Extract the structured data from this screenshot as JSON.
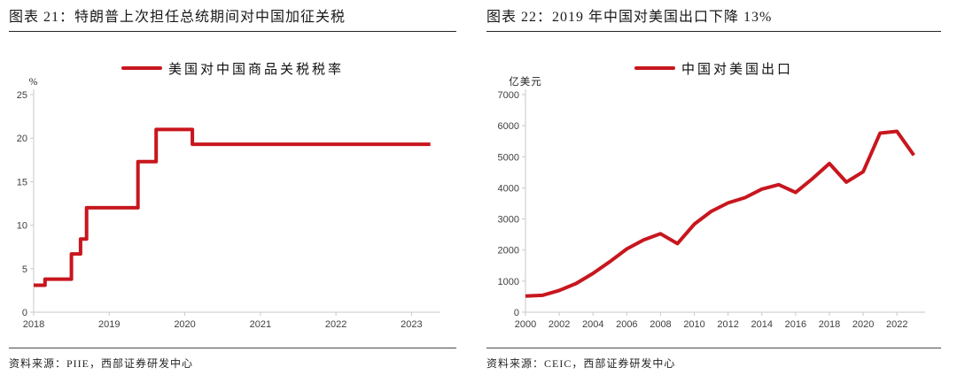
{
  "accent_red": "#C8161E",
  "axis_color": "#C9C9C9",
  "chart_data": [
    {
      "id": "figure-21",
      "type": "step-line",
      "title": "图表 21：特朗普上次担任总统期间对中国加征关税",
      "legend": "美国对中国商品关税税率",
      "source": "资料来源：PIIE，西部证券研发中心",
      "unit": "%",
      "x_range": [
        2018,
        2023.3
      ],
      "y_range": [
        0,
        25
      ],
      "y_ticks": [
        0,
        5,
        10,
        15,
        20,
        25
      ],
      "x_ticks": [
        2018,
        2019,
        2020,
        2021,
        2022,
        2023
      ],
      "points": [
        [
          2018.0,
          3.1
        ],
        [
          2018.15,
          3.8
        ],
        [
          2018.5,
          6.7
        ],
        [
          2018.62,
          8.4
        ],
        [
          2018.7,
          12.0
        ],
        [
          2019.38,
          17.3
        ],
        [
          2019.62,
          21.0
        ],
        [
          2020.1,
          19.3
        ],
        [
          2023.25,
          19.3
        ]
      ]
    },
    {
      "id": "figure-22",
      "type": "line",
      "title": "图表 22：2019 年中国对美国出口下降 13%",
      "legend": "中国对美国出口",
      "source": "资料来源：CEIC，西部证券研发中心",
      "unit": "亿美元",
      "x_range": [
        2000,
        2023.3
      ],
      "y_range": [
        0,
        7000
      ],
      "y_ticks": [
        0,
        1000,
        2000,
        3000,
        4000,
        5000,
        6000,
        7000
      ],
      "x_ticks": [
        2000,
        2002,
        2004,
        2006,
        2008,
        2010,
        2012,
        2014,
        2016,
        2018,
        2020,
        2022
      ],
      "x": [
        2000,
        2001,
        2002,
        2003,
        2004,
        2005,
        2006,
        2007,
        2008,
        2009,
        2010,
        2011,
        2012,
        2013,
        2014,
        2015,
        2016,
        2017,
        2018,
        2019,
        2020,
        2021,
        2022,
        2023
      ],
      "values": [
        521,
        543,
        699,
        925,
        1249,
        1629,
        2035,
        2327,
        2523,
        2208,
        2833,
        3245,
        3518,
        3684,
        3961,
        4102,
        3852,
        4298,
        4784,
        4185,
        4518,
        5761,
        5820,
        5050
      ]
    }
  ]
}
